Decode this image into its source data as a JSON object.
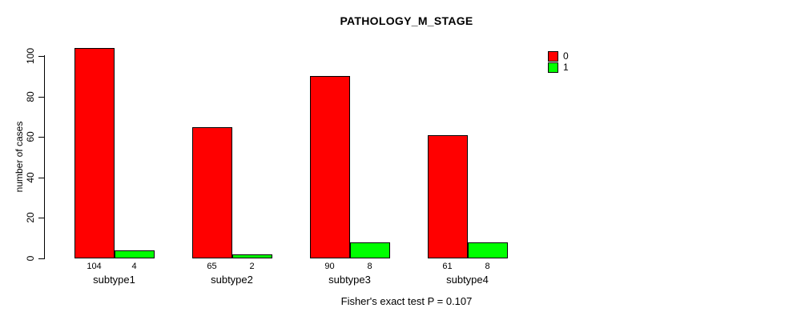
{
  "title": "PATHOLOGY_M_STAGE",
  "footer": "Fisher's exact test P = 0.107",
  "chart_data": {
    "type": "bar",
    "title": "PATHOLOGY_M_STAGE",
    "xlabel": "",
    "ylabel": "number of cases",
    "categories": [
      "subtype1",
      "subtype2",
      "subtype3",
      "subtype4"
    ],
    "series": [
      {
        "name": "0",
        "color": "#FF0000",
        "values": [
          104,
          65,
          90,
          61
        ]
      },
      {
        "name": "1",
        "color": "#00FF00",
        "values": [
          4,
          2,
          8,
          8
        ]
      }
    ],
    "bar_value_labels": [
      [
        "104",
        "4"
      ],
      [
        "65",
        "2"
      ],
      [
        "90",
        "8"
      ],
      [
        "61",
        "8"
      ]
    ],
    "ylim": [
      0,
      100
    ],
    "yticks": [
      0,
      20,
      40,
      60,
      80,
      100
    ],
    "grid": false,
    "legend_position": "top-right",
    "annotation": "Fisher's exact test P = 0.107"
  },
  "legend": {
    "items": [
      {
        "label": "0",
        "color": "#FF0000"
      },
      {
        "label": "1",
        "color": "#00FF00"
      }
    ]
  }
}
